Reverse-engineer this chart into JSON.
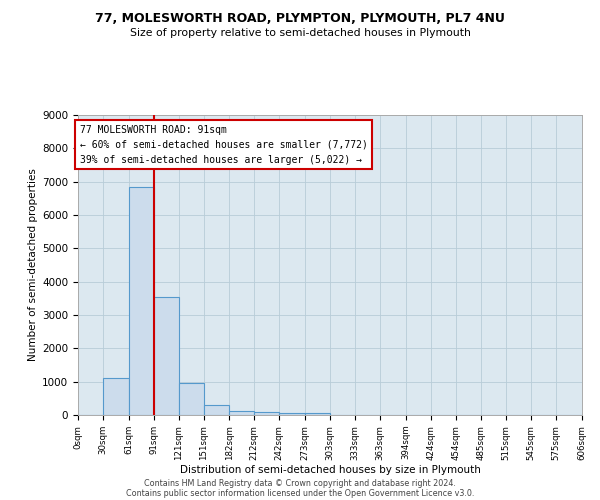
{
  "title1": "77, MOLESWORTH ROAD, PLYMPTON, PLYMOUTH, PL7 4NU",
  "title2": "Size of property relative to semi-detached houses in Plymouth",
  "xlabel": "Distribution of semi-detached houses by size in Plymouth",
  "ylabel": "Number of semi-detached properties",
  "annotation_line1": "77 MOLESWORTH ROAD: 91sqm",
  "annotation_line2": "← 60% of semi-detached houses are smaller (7,772)",
  "annotation_line3": "39% of semi-detached houses are larger (5,022) →",
  "footer1": "Contains HM Land Registry data © Crown copyright and database right 2024.",
  "footer2": "Contains public sector information licensed under the Open Government Licence v3.0.",
  "red_line_x": 91,
  "bar_edges": [
    0,
    30,
    61,
    91,
    121,
    151,
    182,
    212,
    242,
    273,
    303,
    333,
    363,
    394,
    424,
    454,
    485,
    515,
    545,
    575,
    606
  ],
  "bar_heights": [
    0,
    1100,
    6850,
    3550,
    950,
    300,
    130,
    80,
    60,
    50,
    0,
    0,
    0,
    0,
    0,
    0,
    0,
    0,
    0,
    0
  ],
  "bar_color": "#ccdcec",
  "bar_edgecolor": "#5599cc",
  "red_line_color": "#cc0000",
  "annotation_box_color": "#cc0000",
  "plot_bg_color": "#dce8f0",
  "background_color": "#ffffff",
  "grid_color": "#b8ccd8",
  "ylim": [
    0,
    9000
  ],
  "yticks": [
    0,
    1000,
    2000,
    3000,
    4000,
    5000,
    6000,
    7000,
    8000,
    9000
  ]
}
